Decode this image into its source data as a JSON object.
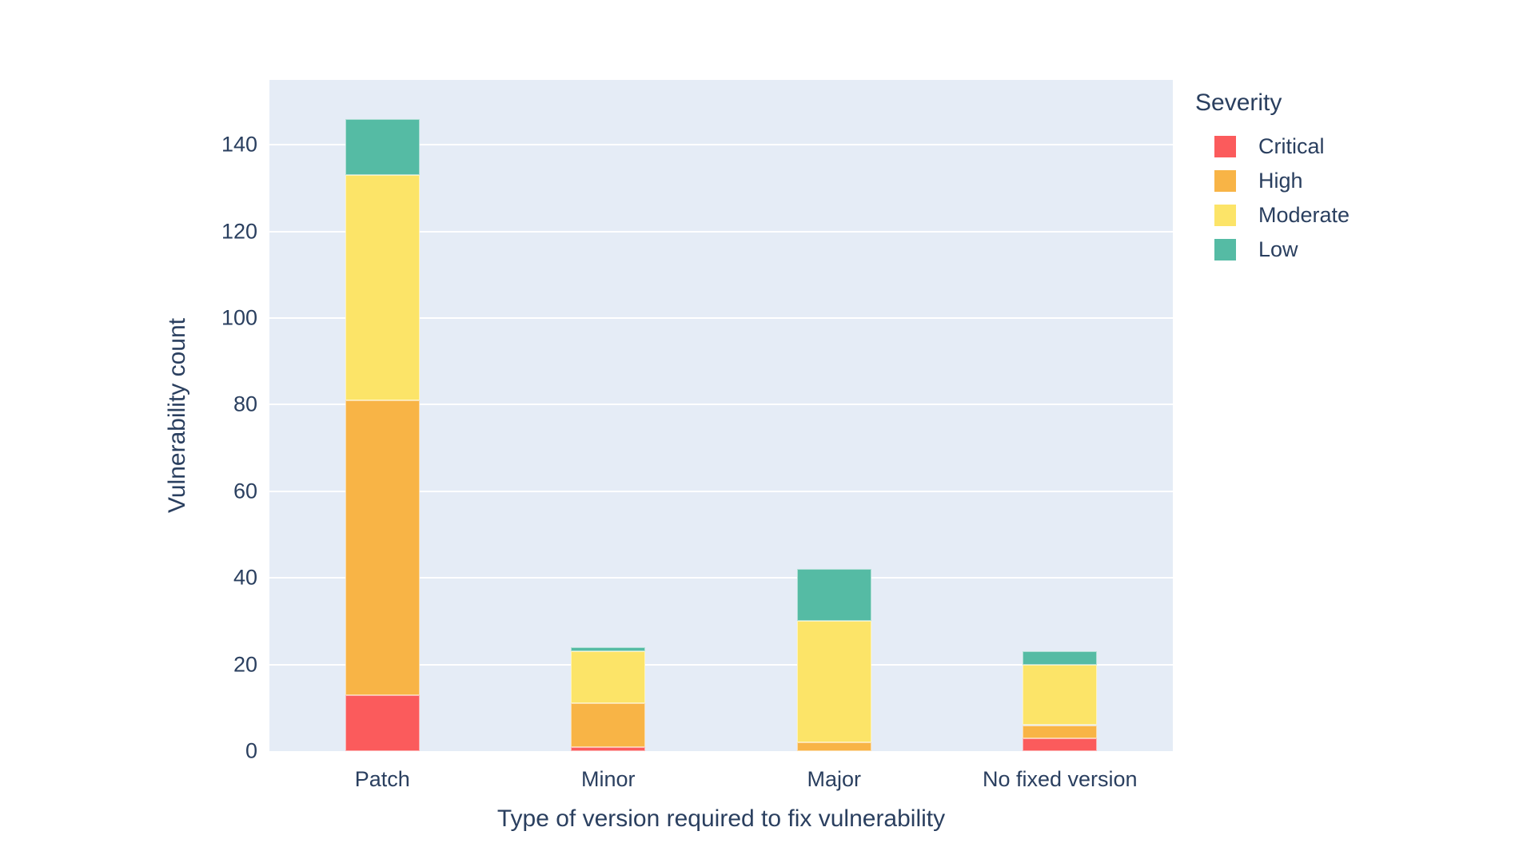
{
  "colors": {
    "page_bg": "#FFFFFF",
    "plot_bg": "#E5ECF6",
    "grid": "#FFFFFF",
    "text": "#2A3F5F"
  },
  "chart_data": {
    "type": "bar",
    "stacked": true,
    "orientation": "vertical",
    "title": "",
    "xlabel": "Type of version required to fix vulnerability",
    "ylabel": "Vulnerability count",
    "categories": [
      "Patch",
      "Minor",
      "Major",
      "No fixed version"
    ],
    "series": [
      {
        "name": "Critical",
        "color": "#FB5B5C",
        "values": [
          13,
          1,
          0,
          3
        ]
      },
      {
        "name": "High",
        "color": "#F8B446",
        "values": [
          68,
          10,
          2,
          3
        ]
      },
      {
        "name": "Moderate",
        "color": "#FCE468",
        "values": [
          52,
          12,
          28,
          14
        ]
      },
      {
        "name": "Low",
        "color": "#55BBA4",
        "values": [
          13,
          1,
          12,
          3
        ]
      }
    ],
    "totals": {
      "Patch": 146,
      "Minor": 24,
      "Major": 42,
      "No fixed version": 23
    },
    "legend_title": "Severity",
    "legend_position": "right",
    "yticks": [
      0,
      20,
      40,
      60,
      80,
      100,
      120,
      140
    ],
    "ylim": [
      0,
      155
    ],
    "grid": true
  }
}
